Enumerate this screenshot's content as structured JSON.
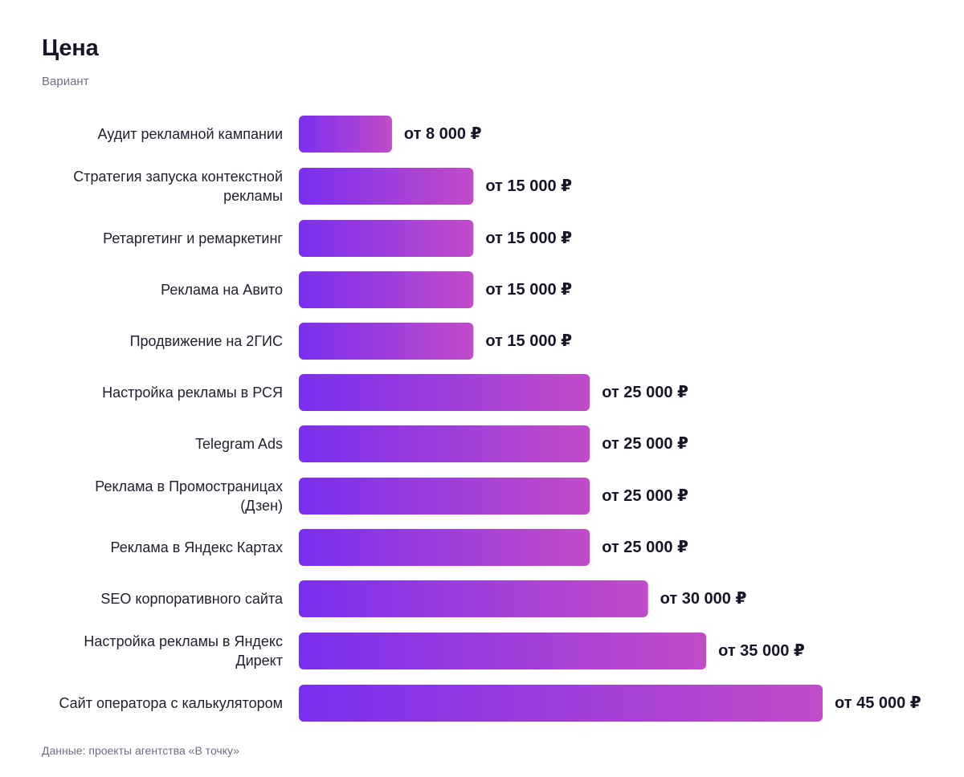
{
  "chart_data": {
    "type": "bar",
    "orientation": "horizontal",
    "title": "Цена",
    "subtitle": "Вариант",
    "source": "Данные: проекты агентства «В точку»",
    "value_prefix": "от",
    "currency": "₽",
    "categories": [
      "Аудит рекламной кампании",
      "Стратегия запуска контекстной рекламы",
      "Ретаргетинг и ремаркетинг",
      "Реклама на Авито",
      "Продвижение на 2ГИС",
      "Настройка рекламы в РСЯ",
      "Telegram Ads",
      "Реклама в Промостраницах (Дзен)",
      "Реклама в Яндекс Картах",
      "SEO корпоративного сайта",
      "Настройка рекламы в Яндекс Директ",
      "Сайт оператора с калькулятором"
    ],
    "category_lines": [
      [
        "Аудит рекламной кампании"
      ],
      [
        "Стратегия запуска контекстной",
        "рекламы"
      ],
      [
        "Ретаргетинг и ремаркетинг"
      ],
      [
        "Реклама на Авито"
      ],
      [
        "Продвижение на 2ГИС"
      ],
      [
        "Настройка рекламы в РСЯ"
      ],
      [
        "Telegram Ads"
      ],
      [
        "Реклама в Промостраницах",
        "(Дзен)"
      ],
      [
        "Реклама в Яндекс Картах"
      ],
      [
        "SEO корпоративного сайта"
      ],
      [
        "Настройка рекламы в Яндекс",
        "Директ"
      ],
      [
        "Сайт оператора с калькулятором"
      ]
    ],
    "values": [
      8000,
      15000,
      15000,
      15000,
      15000,
      25000,
      25000,
      25000,
      25000,
      30000,
      35000,
      45000
    ],
    "value_labels": [
      "от 8 000 ₽",
      "от 15 000 ₽",
      "от 15 000 ₽",
      "от 15 000 ₽",
      "от 15 000 ₽",
      "от 25 000 ₽",
      "от 25 000 ₽",
      "от 25 000 ₽",
      "от 25 000 ₽",
      "от 30 000 ₽",
      "от 35 000 ₽",
      "от 45 000 ₽"
    ],
    "xlim": [
      0,
      45000
    ],
    "grid": false,
    "legend": "none",
    "colors": {
      "bar_gradient_start": "#7a2ff0",
      "bar_gradient_end": "#c24cc8",
      "label": "#1f1f2e",
      "value": "#161629"
    }
  }
}
